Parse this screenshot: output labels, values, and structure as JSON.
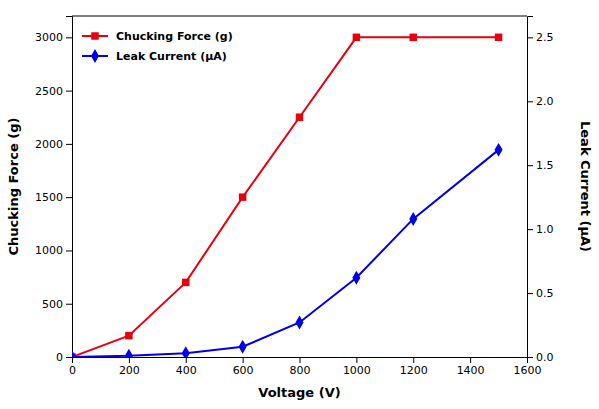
{
  "chart_data": {
    "type": "line",
    "x": [
      0,
      200,
      400,
      600,
      800,
      1000,
      1200,
      1500
    ],
    "xlabel": "Voltage (V)",
    "ylabel": "Chucking Force (g)",
    "y2label": "Leak Current (μA)",
    "xlim": [
      0,
      1600
    ],
    "xticks": [
      0,
      200,
      400,
      600,
      800,
      1000,
      1200,
      1400,
      1600
    ],
    "ylim": [
      0,
      3200
    ],
    "yticks": [
      0,
      500,
      1000,
      1500,
      2000,
      2500,
      3000
    ],
    "y2lim": [
      0,
      2.667
    ],
    "y2ticks": [
      {
        "value": 0.0,
        "label": "0.0"
      },
      0.5,
      {
        "value": 1.0,
        "label": "1.0"
      },
      1.5,
      {
        "value": 2.0,
        "label": "2.0"
      },
      2.5
    ],
    "series": [
      {
        "name": "Chucking Force (g)",
        "color": "#e8000d",
        "marker": "square",
        "values": [
          0,
          200,
          700,
          1500,
          2250,
          3000,
          3000,
          3000
        ]
      },
      {
        "name": "Leak Current (μA)",
        "color": "#0000e8",
        "marker": "diamond",
        "axis": "y2",
        "values": [
          0,
          0.01,
          0.03,
          0.08,
          0.27,
          0.62,
          1.08,
          1.62
        ]
      }
    ],
    "legend": "upper left",
    "grid": false
  }
}
